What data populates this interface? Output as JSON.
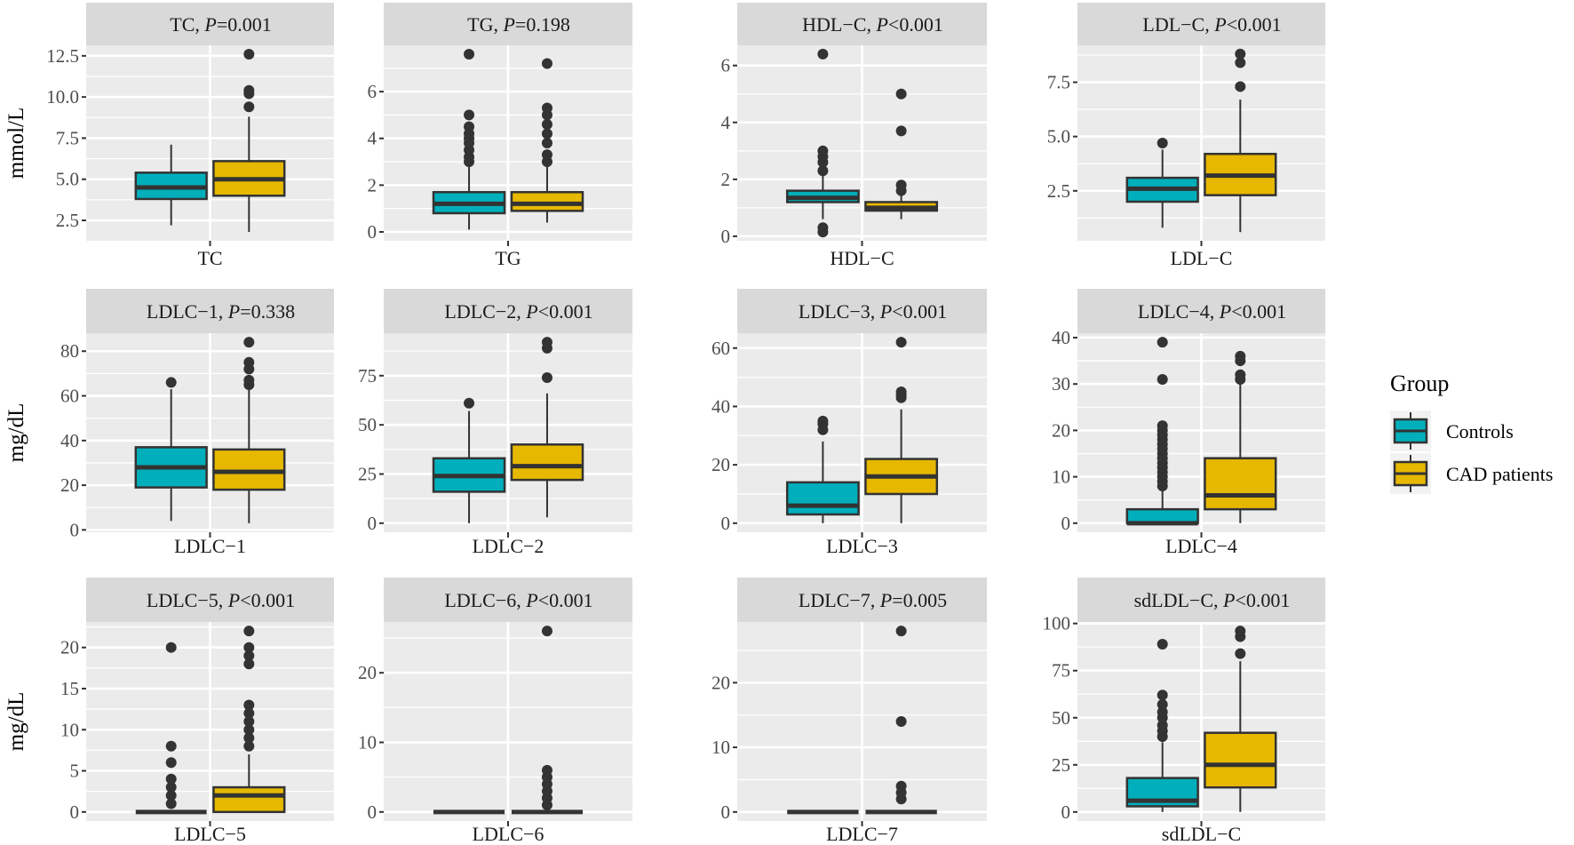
{
  "chart_data": {
    "type": "boxplot",
    "layout": "facet 3x4",
    "legend": {
      "title": "Group",
      "position": "right",
      "entries": [
        "Controls",
        "CAD patients"
      ]
    },
    "colors": {
      "Controls": "#00AFBB",
      "CAD patients": "#E7B800",
      "panel_bg": "#EBEBEB",
      "strip_bg": "#D9D9D9",
      "outline": "#333333"
    },
    "row_ylabels": [
      "mmol/L",
      "mg/dL",
      "mg/dL"
    ],
    "panels": [
      {
        "title": "TC",
        "p_text": "=0.001",
        "xlabel": "TC",
        "ylim": [
          1.26,
          13.14
        ],
        "yticks": [
          2.5,
          5.0,
          7.5,
          10.0,
          12.5
        ],
        "ytick_labels": [
          "2.5",
          "5.0",
          "7.5",
          "10.0",
          "12.5"
        ],
        "groups": [
          {
            "name": "Controls",
            "min": 2.2,
            "q1": 3.8,
            "median": 4.5,
            "q3": 5.4,
            "max": 7.1,
            "outliers": []
          },
          {
            "name": "CAD patients",
            "min": 1.8,
            "q1": 4.0,
            "median": 5.0,
            "q3": 6.1,
            "max": 8.8,
            "outliers": [
              9.4,
              10.2,
              10.4,
              12.6
            ]
          }
        ]
      },
      {
        "title": "TG",
        "p_text": "=0.198",
        "xlabel": "TG",
        "ylim": [
          -0.38,
          7.98
        ],
        "yticks": [
          0,
          2,
          4,
          6
        ],
        "ytick_labels": [
          "0",
          "2",
          "4",
          "6"
        ],
        "groups": [
          {
            "name": "Controls",
            "min": 0.1,
            "q1": 0.8,
            "median": 1.2,
            "q3": 1.7,
            "max": 2.9,
            "outliers": [
              3.0,
              3.2,
              3.5,
              3.8,
              4.0,
              4.2,
              4.5,
              5.0,
              7.6
            ]
          },
          {
            "name": "CAD patients",
            "min": 0.4,
            "q1": 0.9,
            "median": 1.2,
            "q3": 1.7,
            "max": 2.9,
            "outliers": [
              3.0,
              3.3,
              3.8,
              4.2,
              4.6,
              5.0,
              5.3,
              7.2
            ]
          }
        ]
      },
      {
        "title": "HDL−C, ",
        "p_text": "<0.001",
        "xlabel": "HDL−C",
        "ylim": [
          -0.16,
          6.71
        ],
        "yticks": [
          0,
          2,
          4,
          6
        ],
        "ytick_labels": [
          "0",
          "2",
          "4",
          "6"
        ],
        "groups": [
          {
            "name": "Controls",
            "min": 0.6,
            "q1": 1.2,
            "median": 1.35,
            "q3": 1.6,
            "max": 2.2,
            "outliers": [
              0.15,
              0.3,
              2.3,
              2.6,
              2.8,
              3.0,
              6.4
            ]
          },
          {
            "name": "CAD patients",
            "min": 0.6,
            "q1": 0.9,
            "median": 1.0,
            "q3": 1.2,
            "max": 1.5,
            "outliers": [
              1.6,
              1.8,
              3.7,
              5.0
            ]
          }
        ]
      },
      {
        "title": "LDL−C",
        "p_text": "<0.001",
        "xlabel": "LDL−C",
        "ylim": [
          0.2,
          9.2
        ],
        "yticks": [
          2.5,
          5.0,
          7.5
        ],
        "ytick_labels": [
          "2.5",
          "5.0",
          "7.5"
        ],
        "groups": [
          {
            "name": "Controls",
            "min": 0.8,
            "q1": 2.0,
            "median": 2.6,
            "q3": 3.1,
            "max": 4.4,
            "outliers": [
              4.7
            ]
          },
          {
            "name": "CAD patients",
            "min": 0.6,
            "q1": 2.3,
            "median": 3.2,
            "q3": 4.2,
            "max": 6.7,
            "outliers": [
              7.3,
              8.4,
              8.8
            ]
          }
        ]
      },
      {
        "title": "LDLC−1",
        "p_text": "=0.338",
        "xlabel": "LDLC−1",
        "ylim": [
          -1.05,
          88.05
        ],
        "yticks": [
          0,
          20,
          40,
          60,
          80
        ],
        "ytick_labels": [
          "0",
          "20",
          "40",
          "60",
          "80"
        ],
        "groups": [
          {
            "name": "Controls",
            "min": 4,
            "q1": 19,
            "median": 28,
            "q3": 37,
            "max": 63,
            "outliers": [
              66
            ]
          },
          {
            "name": "CAD patients",
            "min": 3,
            "q1": 18,
            "median": 26,
            "q3": 36,
            "max": 63,
            "outliers": [
              65,
              67,
              72,
              75,
              84
            ]
          }
        ]
      },
      {
        "title": "LDLC−2",
        "p_text": "<0.001",
        "xlabel": "LDLC−2",
        "ylim": [
          -4.6,
          96.6
        ],
        "yticks": [
          0,
          25,
          50,
          75
        ],
        "ytick_labels": [
          "0",
          "25",
          "50",
          "75"
        ],
        "groups": [
          {
            "name": "Controls",
            "min": 0,
            "q1": 16,
            "median": 24,
            "q3": 33,
            "max": 57,
            "outliers": [
              61
            ]
          },
          {
            "name": "CAD patients",
            "min": 3,
            "q1": 22,
            "median": 29,
            "q3": 40,
            "max": 66,
            "outliers": [
              74,
              89,
              92
            ]
          }
        ]
      },
      {
        "title": "LDLC−3",
        "p_text": "<0.001",
        "xlabel": "LDLC−3",
        "ylim": [
          -3.1,
          65.1
        ],
        "yticks": [
          0,
          20,
          40,
          60
        ],
        "ytick_labels": [
          "0",
          "20",
          "40",
          "60"
        ],
        "groups": [
          {
            "name": "Controls",
            "min": 0,
            "q1": 3,
            "median": 6,
            "q3": 14,
            "max": 28,
            "outliers": [
              32,
              34,
              35
            ]
          },
          {
            "name": "CAD patients",
            "min": 0,
            "q1": 10,
            "median": 16,
            "q3": 22,
            "max": 39,
            "outliers": [
              43,
              44,
              45,
              62
            ]
          }
        ]
      },
      {
        "title": "LDLC−4",
        "p_text": "<0.001",
        "xlabel": "LDLC−4",
        "ylim": [
          -1.95,
          40.95
        ],
        "yticks": [
          0,
          10,
          20,
          30,
          40
        ],
        "ytick_labels": [
          "0",
          "10",
          "20",
          "30",
          "40"
        ],
        "groups": [
          {
            "name": "Controls",
            "min": 0,
            "q1": 0,
            "median": 0,
            "q3": 3,
            "max": 7,
            "outliers": [
              8,
              9,
              10,
              11,
              12,
              13,
              14,
              15,
              16,
              17,
              18,
              19,
              20,
              21,
              31,
              39
            ]
          },
          {
            "name": "CAD patients",
            "min": 0,
            "q1": 3,
            "median": 6,
            "q3": 14,
            "max": 30,
            "outliers": [
              31,
              32,
              35,
              36
            ]
          }
        ]
      },
      {
        "title": "LDLC−5",
        "p_text": "<0.001",
        "xlabel": "LDLC−5",
        "ylim": [
          -1.1,
          23.1
        ],
        "yticks": [
          0,
          5,
          10,
          15,
          20
        ],
        "ytick_labels": [
          "0",
          "5",
          "10",
          "15",
          "20"
        ],
        "groups": [
          {
            "name": "Controls",
            "min": 0,
            "q1": 0,
            "median": 0,
            "q3": 0,
            "max": 0,
            "outliers": [
              1,
              2,
              3,
              4,
              6,
              8,
              20
            ]
          },
          {
            "name": "CAD patients",
            "min": 0,
            "q1": 0,
            "median": 2,
            "q3": 3,
            "max": 7,
            "outliers": [
              8,
              9,
              10,
              11,
              12,
              13,
              18,
              19,
              20,
              22
            ]
          }
        ]
      },
      {
        "title": "LDLC−6",
        "p_text": "<0.001",
        "xlabel": "LDLC−6",
        "ylim": [
          -1.3,
          27.3
        ],
        "yticks": [
          0,
          10,
          20
        ],
        "ytick_labels": [
          "0",
          "10",
          "20"
        ],
        "groups": [
          {
            "name": "Controls",
            "min": 0,
            "q1": 0,
            "median": 0,
            "q3": 0,
            "max": 0,
            "outliers": []
          },
          {
            "name": "CAD patients",
            "min": 0,
            "q1": 0,
            "median": 0,
            "q3": 0,
            "max": 0,
            "outliers": [
              1,
              2,
              3,
              4,
              5,
              6,
              26
            ]
          }
        ]
      },
      {
        "title": "LDLC−7",
        "p_text": "=0.005",
        "xlabel": "LDLC−7",
        "ylim": [
          -1.4,
          29.4
        ],
        "yticks": [
          0,
          10,
          20
        ],
        "ytick_labels": [
          "0",
          "10",
          "20"
        ],
        "groups": [
          {
            "name": "Controls",
            "min": 0,
            "q1": 0,
            "median": 0,
            "q3": 0,
            "max": 0,
            "outliers": []
          },
          {
            "name": "CAD patients",
            "min": 0,
            "q1": 0,
            "median": 0,
            "q3": 0,
            "max": 0,
            "outliers": [
              2,
              3,
              4,
              14,
              28
            ]
          }
        ]
      },
      {
        "title": "sdLDL−C",
        "p_text": "<0.001",
        "xlabel": "sdLDL−C",
        "ylim": [
          -4.8,
          100.8
        ],
        "yticks": [
          0,
          25,
          50,
          75,
          100
        ],
        "ytick_labels": [
          "0",
          "25",
          "50",
          "75",
          "100"
        ],
        "groups": [
          {
            "name": "Controls",
            "min": 0,
            "q1": 3,
            "median": 6,
            "q3": 18,
            "max": 37,
            "outliers": [
              40,
              43,
              46,
              50,
              53,
              57,
              62,
              89
            ]
          },
          {
            "name": "CAD patients",
            "min": 0,
            "q1": 13,
            "median": 25,
            "q3": 42,
            "max": 80,
            "outliers": [
              84,
              93,
              96
            ]
          }
        ]
      }
    ]
  }
}
